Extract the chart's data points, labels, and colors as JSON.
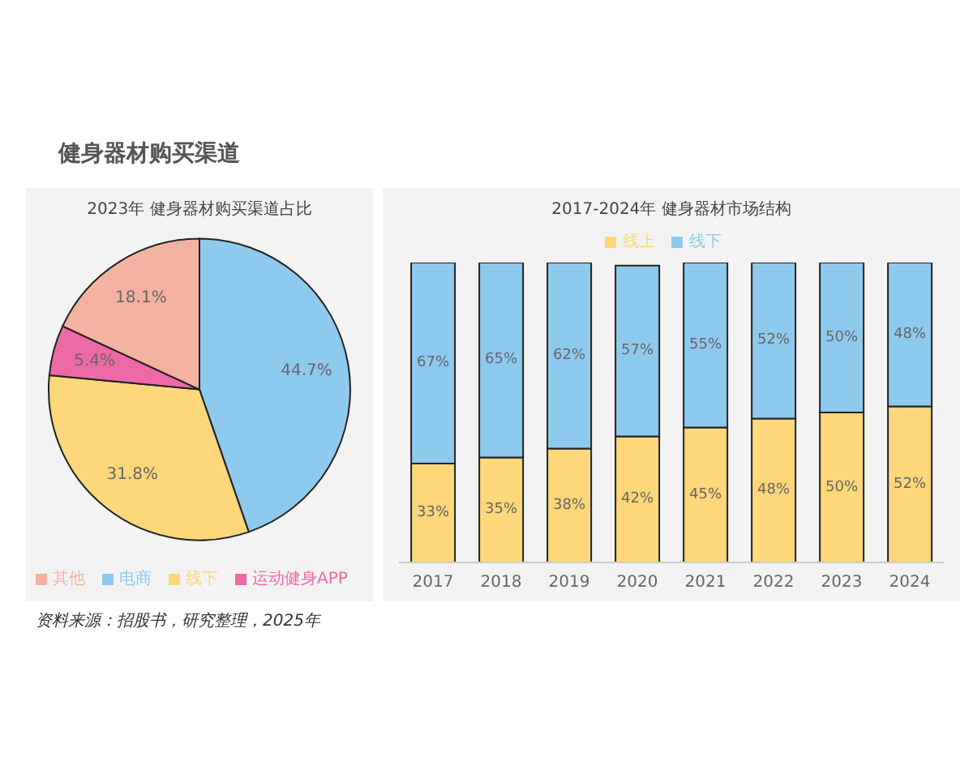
{
  "chart_data": [
    {
      "type": "pie",
      "title": "2023年  健身器材购买渠道占比",
      "categories": [
        "电商",
        "线下",
        "运动健身APP",
        "其他"
      ],
      "values": [
        44.7,
        31.8,
        5.4,
        18.1
      ],
      "colors": [
        "#8ec9ee",
        "#fdd77a",
        "#ee6aa7",
        "#f4b2a0"
      ],
      "value_labels": [
        "44.7%",
        "31.8%",
        "5.4%",
        "18.1%"
      ],
      "legend": "bottom",
      "annotations": [
        "健身器材购买渠道",
        "资料来源：招股书，研究整理，2025年"
      ]
    },
    {
      "type": "bar",
      "title": "2017-2024年  健身器材市场结构",
      "categories": [
        "2017",
        "2018",
        "2019",
        "2020",
        "2021",
        "2022",
        "2023",
        "2024"
      ],
      "stacked": true,
      "tick_labels": "x",
      "legend": "top",
      "series": [
        {
          "name": "线上",
          "color": "#fdd77a",
          "values": [
            33,
            35,
            38,
            42,
            45,
            48,
            50,
            52
          ],
          "value_labels": [
            "33%",
            "35%",
            "38%",
            "42%",
            "45%",
            "48%",
            "50%",
            "52%"
          ]
        },
        {
          "name": "线下",
          "color": "#8ec9ee",
          "values": [
            67,
            65,
            62,
            57,
            55,
            52,
            50,
            48
          ],
          "value_labels": [
            "67%",
            "65%",
            "62%",
            "57%",
            "55%",
            "52%",
            "50%",
            "48%"
          ]
        }
      ]
    }
  ]
}
